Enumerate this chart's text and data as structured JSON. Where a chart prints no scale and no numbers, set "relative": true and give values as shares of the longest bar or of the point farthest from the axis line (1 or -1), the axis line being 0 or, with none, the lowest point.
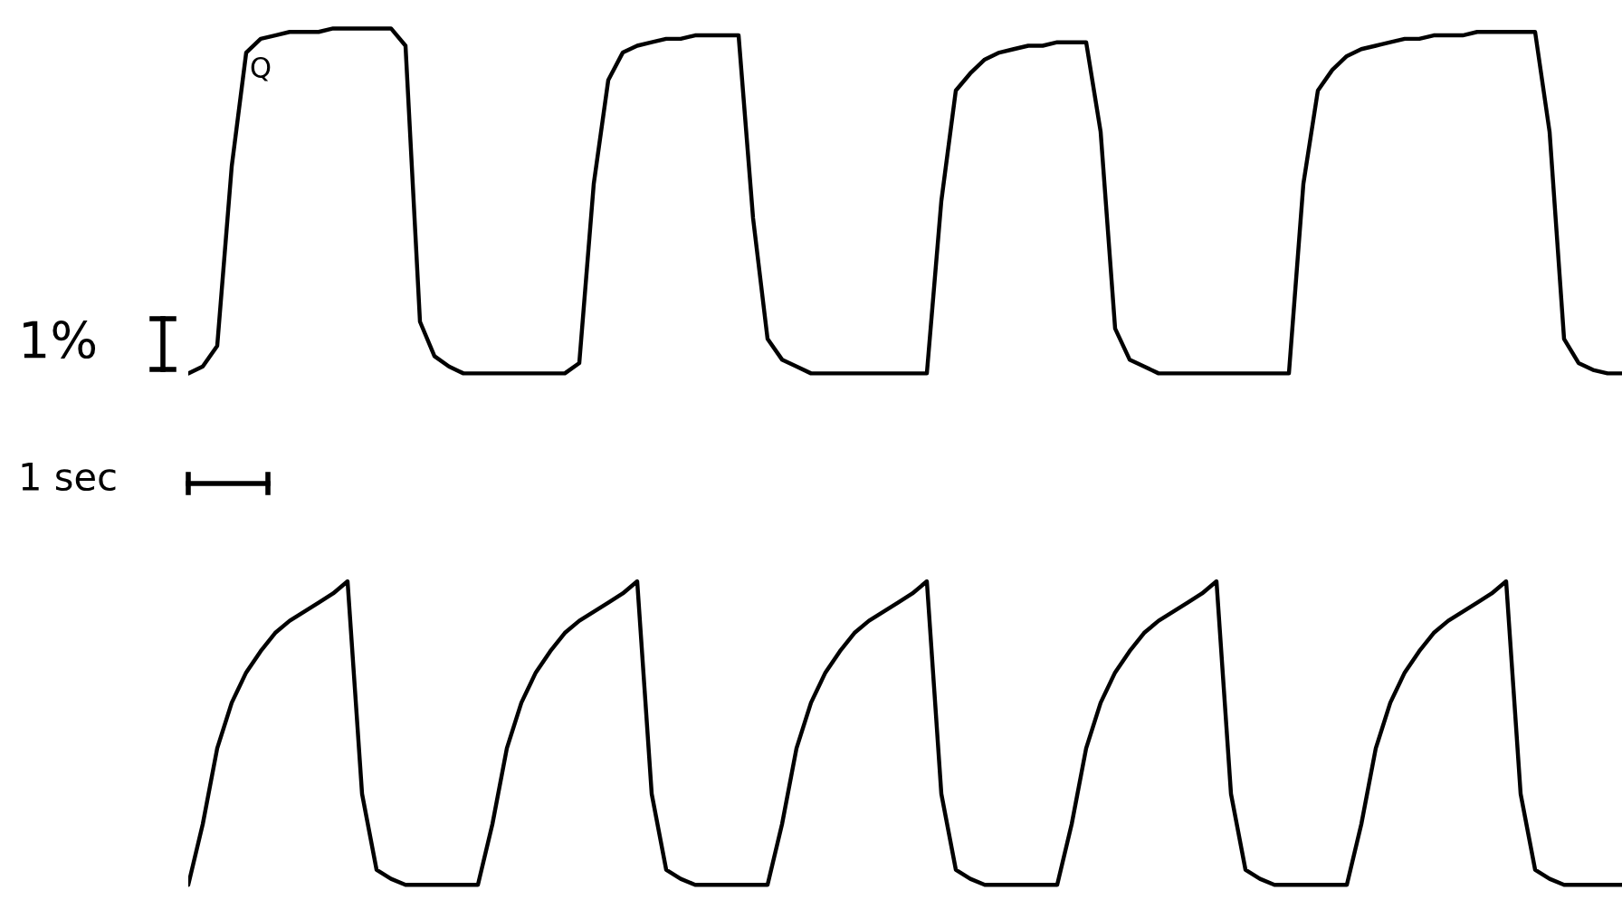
{
  "chart_data": [
    {
      "type": "line",
      "relative": true,
      "categories": [
        null,
        null,
        null,
        null,
        null,
        null,
        null,
        null,
        null,
        null,
        null,
        null,
        null,
        null,
        null,
        null,
        null,
        null,
        null,
        null,
        null,
        null,
        null,
        null,
        null,
        null,
        null,
        null,
        null,
        null,
        null,
        null,
        null,
        null,
        null,
        null,
        null,
        null,
        null,
        null,
        null,
        null,
        null,
        null,
        null,
        null,
        null,
        null,
        null,
        null,
        null,
        null,
        null,
        null,
        null,
        null,
        null,
        null,
        null,
        null,
        null,
        null,
        null,
        null,
        null,
        null,
        null,
        null,
        null,
        null,
        null,
        null,
        null,
        null,
        null,
        null,
        null,
        null,
        null,
        null,
        null,
        null,
        null,
        null,
        null,
        null,
        null,
        null,
        null,
        null,
        null,
        null,
        null,
        null,
        null,
        null,
        null,
        null,
        null,
        null
      ],
      "series": [
        {
          "color": "#000000",
          "values": [
            0,
            0.02,
            0.08,
            0.6,
            0.93,
            0.97,
            0.98,
            0.99,
            0.99,
            0.99,
            1,
            1,
            1,
            1,
            1,
            0.95,
            0.15,
            0.05,
            0.02,
            0,
            0,
            0,
            0,
            0,
            0,
            0,
            0,
            0.03,
            0.55,
            0.85,
            0.93,
            0.95,
            0.96,
            0.97,
            0.97,
            0.98,
            0.98,
            0.98,
            0.98,
            0.45,
            0.1,
            0.04,
            0.02,
            0,
            0,
            0,
            0,
            0,
            0,
            0,
            0,
            0,
            0.5,
            0.82,
            0.87,
            0.91,
            0.93,
            0.94,
            0.95,
            0.95,
            0.96,
            0.96,
            0.96,
            0.7,
            0.13,
            0.04,
            0.02,
            0,
            0,
            0,
            0,
            0,
            0,
            0,
            0,
            0,
            0,
            0.55,
            0.82,
            0.88,
            0.92,
            0.94,
            0.95,
            0.96,
            0.97,
            0.97,
            0.98,
            0.98,
            0.98,
            0.99,
            0.99,
            0.99,
            0.99,
            0.99,
            0.7,
            0.1,
            0.03,
            0.01,
            0,
            0
          ]
        }
      ],
      "annotations": [
        "1%",
        "1 sec",
        "Q"
      ]
    },
    {
      "type": "line",
      "relative": true,
      "categories": [
        null,
        null,
        null,
        null,
        null,
        null,
        null,
        null,
        null,
        null,
        null,
        null,
        null,
        null,
        null,
        null,
        null,
        null,
        null,
        null,
        null,
        null,
        null,
        null,
        null,
        null,
        null,
        null,
        null,
        null,
        null,
        null,
        null,
        null,
        null,
        null,
        null,
        null,
        null,
        null,
        null,
        null,
        null,
        null,
        null,
        null,
        null,
        null,
        null,
        null,
        null,
        null,
        null,
        null,
        null,
        null,
        null,
        null,
        null,
        null,
        null,
        null,
        null,
        null,
        null,
        null,
        null,
        null,
        null,
        null,
        null,
        null,
        null,
        null,
        null,
        null,
        null,
        null,
        null,
        null,
        null,
        null,
        null,
        null,
        null,
        null,
        null,
        null,
        null,
        null,
        null,
        null,
        null,
        null,
        null,
        null,
        null,
        null,
        null,
        null
      ],
      "series": [
        {
          "color": "#000000",
          "values": [
            0,
            0.2,
            0.45,
            0.6,
            0.7,
            0.77,
            0.83,
            0.87,
            0.9,
            0.93,
            0.96,
            1,
            0.3,
            0.05,
            0.02,
            0,
            0,
            0,
            0,
            0,
            0,
            0.2,
            0.45,
            0.6,
            0.7,
            0.77,
            0.83,
            0.87,
            0.9,
            0.93,
            0.96,
            1,
            0.3,
            0.05,
            0.02,
            0,
            0,
            0,
            0,
            0,
            0,
            0.2,
            0.45,
            0.6,
            0.7,
            0.77,
            0.83,
            0.87,
            0.9,
            0.93,
            0.96,
            1,
            0.3,
            0.05,
            0.02,
            0,
            0,
            0,
            0,
            0,
            0,
            0.2,
            0.45,
            0.6,
            0.7,
            0.77,
            0.83,
            0.87,
            0.9,
            0.93,
            0.96,
            1,
            0.3,
            0.05,
            0.02,
            0,
            0,
            0,
            0,
            0,
            0,
            0.2,
            0.45,
            0.6,
            0.7,
            0.77,
            0.83,
            0.87,
            0.9,
            0.93,
            0.96,
            1,
            0.3,
            0.05,
            0.02,
            0,
            0,
            0,
            0,
            0
          ]
        }
      ]
    }
  ]
}
